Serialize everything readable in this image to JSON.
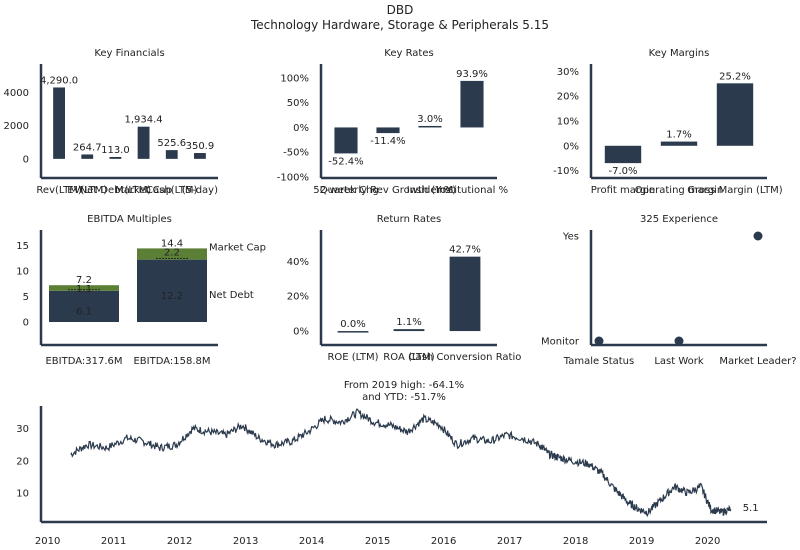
{
  "header": {
    "ticker": "DBD",
    "subtitle": "Technology Hardware, Storage & Peripherals 5.15"
  },
  "colors": {
    "bar": "#2b3a4d",
    "green": "#5b7f35",
    "axis": "#2b3a4d",
    "text": "#222222"
  },
  "chart_data": [
    {
      "id": "key-financials",
      "type": "bar",
      "title": "Key Financials",
      "categories": [
        "Rev(LTM)",
        "EV(LTM)",
        "Net Debt(LTM)",
        "Market Cap",
        "Cash(LTM)",
        "(5-day)"
      ],
      "values": [
        4290.0,
        264.7,
        113.0,
        1934.4,
        525.6,
        350.9
      ],
      "value_labels": [
        "4,290.0",
        "264.7",
        "113.0",
        "1,934.4",
        "525.6",
        "350.9"
      ],
      "ylim": [
        -1150,
        5700
      ],
      "yticks": [
        0,
        2000,
        4000
      ]
    },
    {
      "id": "key-rates",
      "type": "bar",
      "title": "Key Rates",
      "categories": [
        "52-week Chg",
        "Quarterly Rev Growth (YoY)",
        "Insider %",
        "Institutional %"
      ],
      "values": [
        -52.4,
        -11.4,
        3.0,
        93.9
      ],
      "value_labels": [
        "-52.4%",
        "-11.4%",
        "3.0%",
        "93.9%"
      ],
      "ylim": [
        -102,
        128
      ],
      "yticks": [
        -100,
        -50,
        0,
        50,
        100
      ],
      "ytick_labels": [
        "-100%",
        "-50%",
        "0%",
        "50%",
        "100%"
      ]
    },
    {
      "id": "key-margins",
      "type": "bar",
      "title": "Key Margins",
      "categories": [
        "Profit margin",
        "Operating margin",
        "Gross Margin (LTM)"
      ],
      "values": [
        -7.0,
        1.7,
        25.2
      ],
      "value_labels": [
        "-7.0%",
        "1.7%",
        "25.2%"
      ],
      "ylim": [
        -13,
        33
      ],
      "yticks": [
        -10,
        0,
        10,
        20,
        30
      ],
      "ytick_labels": [
        "-10%",
        "0%",
        "10%",
        "20%",
        "30%"
      ]
    },
    {
      "id": "ebitda-multiples",
      "type": "bar",
      "title": "EBITDA Multiples",
      "categories": [
        "EBITDA:317.6M",
        "EBITDA:158.8M"
      ],
      "series": [
        {
          "name": "Net Debt",
          "values": [
            6.1,
            12.2
          ]
        },
        {
          "name": "Market Cap",
          "values": [
            1.1,
            2.2
          ]
        }
      ],
      "totals": [
        7.2,
        14.4
      ],
      "totals_labels": [
        "7.2",
        "14.4"
      ],
      "segment_labels": [
        [
          "6.1",
          "1.1"
        ],
        [
          "12.2",
          "2.2"
        ]
      ],
      "ylim": [
        -4.5,
        18
      ],
      "yticks": [
        0,
        5,
        10,
        15
      ]
    },
    {
      "id": "return-rates",
      "type": "bar",
      "title": "Return Rates",
      "categories": [
        "ROE (LTM)",
        "ROA (LTM)",
        "Cash Conversion Ratio"
      ],
      "values": [
        0.0,
        1.1,
        42.7
      ],
      "value_labels": [
        "0.0%",
        "1.1%",
        "42.7%"
      ],
      "ylim": [
        -8,
        58
      ],
      "yticks": [
        0,
        20,
        40
      ],
      "ytick_labels": [
        "0%",
        "20%",
        "40%"
      ]
    },
    {
      "id": "experience",
      "type": "scatter",
      "title": "325 Experience",
      "categories": [
        "Tamale Status",
        "Last Work",
        "Market Leader?"
      ],
      "levels": [
        "Monitor",
        "Yes"
      ],
      "values": [
        "Monitor",
        "Monitor",
        "Yes"
      ]
    },
    {
      "id": "price-history",
      "type": "line",
      "title": "From 2019 high: -64.1%\nand YTD: -51.7%",
      "title_lines": [
        "From 2019 high: -64.1%",
        "and YTD: -51.7%"
      ],
      "x": [
        2010.35,
        2010.6,
        2010.9,
        2011.2,
        2011.45,
        2011.7,
        2011.95,
        2012.2,
        2012.45,
        2012.7,
        2012.95,
        2013.2,
        2013.45,
        2013.7,
        2013.95,
        2014.2,
        2014.45,
        2014.7,
        2014.95,
        2015.2,
        2015.45,
        2015.7,
        2015.95,
        2016.2,
        2016.45,
        2016.7,
        2016.95,
        2017.2,
        2017.45,
        2017.6,
        2017.75,
        2017.95,
        2018.2,
        2018.4,
        2018.6,
        2018.8,
        2018.95,
        2019.1,
        2019.3,
        2019.5,
        2019.7,
        2019.9,
        2020.05,
        2020.2,
        2020.35
      ],
      "y": [
        22,
        25,
        24,
        27,
        26,
        24,
        25,
        30,
        29,
        28,
        31,
        27,
        25,
        26,
        29,
        33,
        32,
        35,
        32,
        31,
        29,
        33,
        31,
        25,
        27,
        26,
        28,
        27,
        25,
        22,
        21,
        20,
        19,
        16,
        11,
        7,
        5,
        4,
        8,
        12,
        10,
        12,
        5,
        4,
        5
      ],
      "last_label": "5.1",
      "xlim": [
        2009.9,
        2020.9
      ],
      "ylim": [
        1,
        37
      ],
      "xticks": [
        2010,
        2011,
        2012,
        2013,
        2014,
        2015,
        2016,
        2017,
        2018,
        2019,
        2020
      ],
      "yticks": [
        10,
        20,
        30
      ]
    }
  ]
}
